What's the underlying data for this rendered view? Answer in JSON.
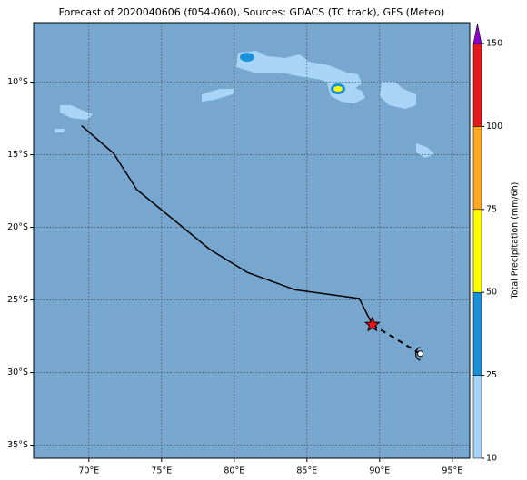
{
  "chart_data": {
    "type": "map",
    "title": "Forecast of 2020040606 (f054-060), Sources: GDACS (TC track), GFS (Meteo)",
    "xlim": [
      66.2,
      96.2
    ],
    "ylim": [
      -35.9,
      -5.9
    ],
    "xticks": [
      {
        "value": 70,
        "label": "70°E"
      },
      {
        "value": 75,
        "label": "75°E"
      },
      {
        "value": 80,
        "label": "80°E"
      },
      {
        "value": 85,
        "label": "85°E"
      },
      {
        "value": 90,
        "label": "90°E"
      },
      {
        "value": 95,
        "label": "95°E"
      }
    ],
    "yticks": [
      {
        "value": -10,
        "label": "10°S"
      },
      {
        "value": -15,
        "label": "15°S"
      },
      {
        "value": -20,
        "label": "20°S"
      },
      {
        "value": -25,
        "label": "25°S"
      },
      {
        "value": -30,
        "label": "30°S"
      },
      {
        "value": -35,
        "label": "35°S"
      }
    ],
    "grid": true,
    "track": {
      "color": "#000000",
      "lon": [
        69.5,
        71.7,
        73.3,
        78.3,
        80.9,
        84.2,
        88.6,
        89.5
      ],
      "lat": [
        -13.0,
        -14.9,
        -17.4,
        -21.5,
        -23.1,
        -24.3,
        -24.9,
        -26.7
      ]
    },
    "forecast": {
      "color": "#000000",
      "lon": [
        89.5,
        92.8
      ],
      "lat": [
        -26.7,
        -28.7
      ]
    },
    "current": {
      "color": "#e8101a",
      "lon": 89.5,
      "lat": -26.7
    },
    "colorbar": {
      "label": "Total Precipitation (mm/6h)",
      "bounds": [
        10,
        25,
        50,
        75,
        100,
        150
      ],
      "colors": [
        "#a8d4f8",
        "#1a90d8",
        "#ffff00",
        "#ffa820",
        "#e41a1c"
      ],
      "extend_color": "#8a00c8"
    }
  }
}
